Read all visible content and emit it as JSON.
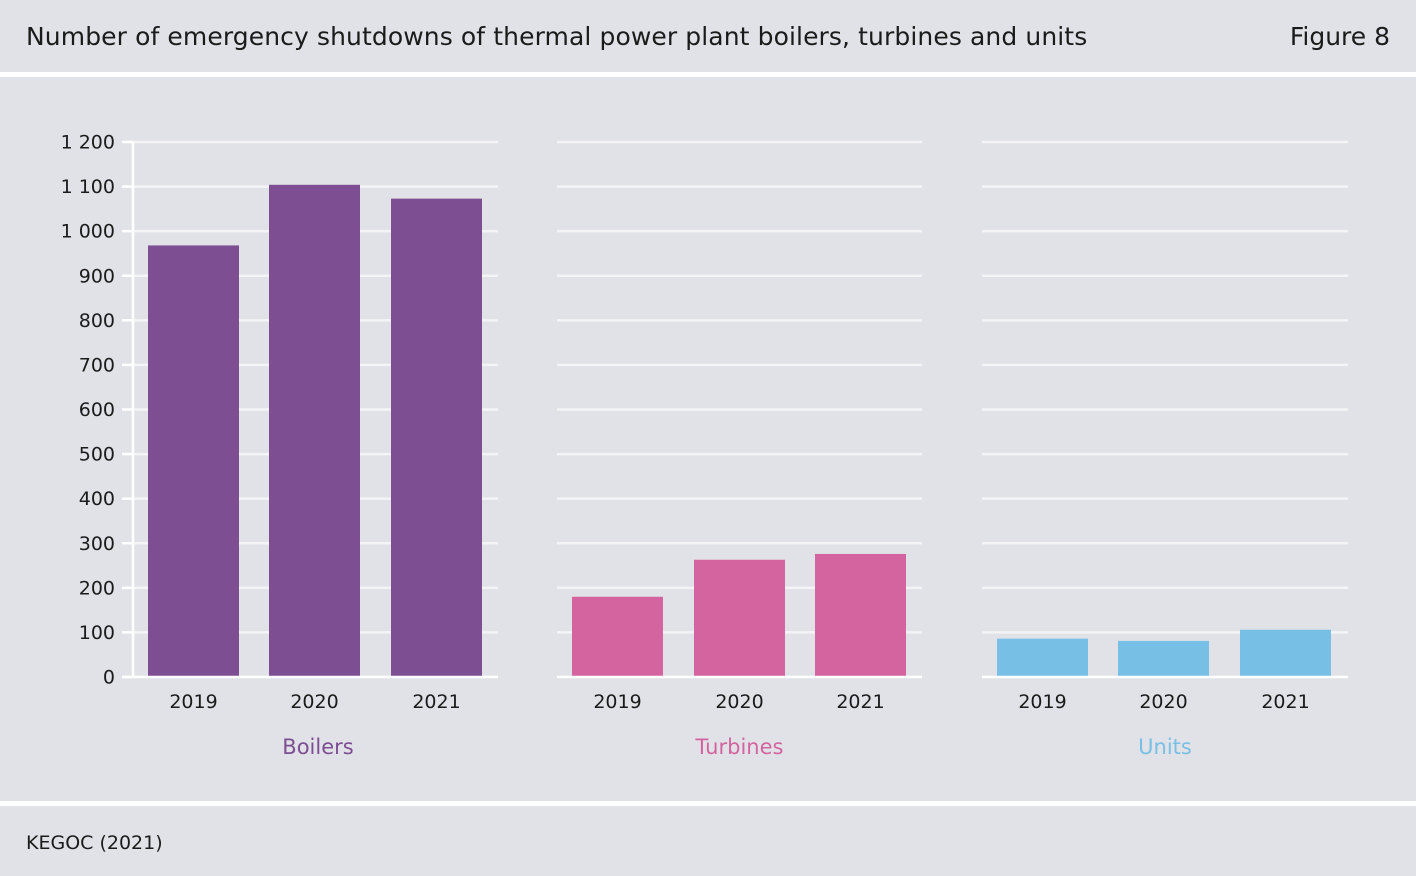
{
  "header": {
    "title": "Number of emergency shutdowns of thermal power plant boilers, turbines and units",
    "figure_label": "Figure 8"
  },
  "footer": {
    "source": "KEGOC (2021)"
  },
  "chart_data": {
    "type": "bar",
    "ylim": [
      0,
      1200
    ],
    "y_ticks": [
      0,
      100,
      200,
      300,
      400,
      500,
      600,
      700,
      800,
      900,
      1000,
      1100,
      1200
    ],
    "y_tick_labels": [
      "0",
      "100",
      "200",
      "300",
      "400",
      "500",
      "600",
      "700",
      "800",
      "900",
      "1 000",
      "1 100",
      "1 200"
    ],
    "grid": true,
    "panels": [
      {
        "name": "Boilers",
        "color": "#7d4e92",
        "categories": [
          "2019",
          "2020",
          "2021"
        ],
        "values": [
          968,
          1104,
          1073
        ]
      },
      {
        "name": "Turbines",
        "color": "#d4649f",
        "categories": [
          "2019",
          "2020",
          "2021"
        ],
        "values": [
          180,
          263,
          276
        ]
      },
      {
        "name": "Units",
        "color": "#78bfe6",
        "categories": [
          "2019",
          "2020",
          "2021"
        ],
        "values": [
          86,
          81,
          106
        ]
      }
    ]
  }
}
